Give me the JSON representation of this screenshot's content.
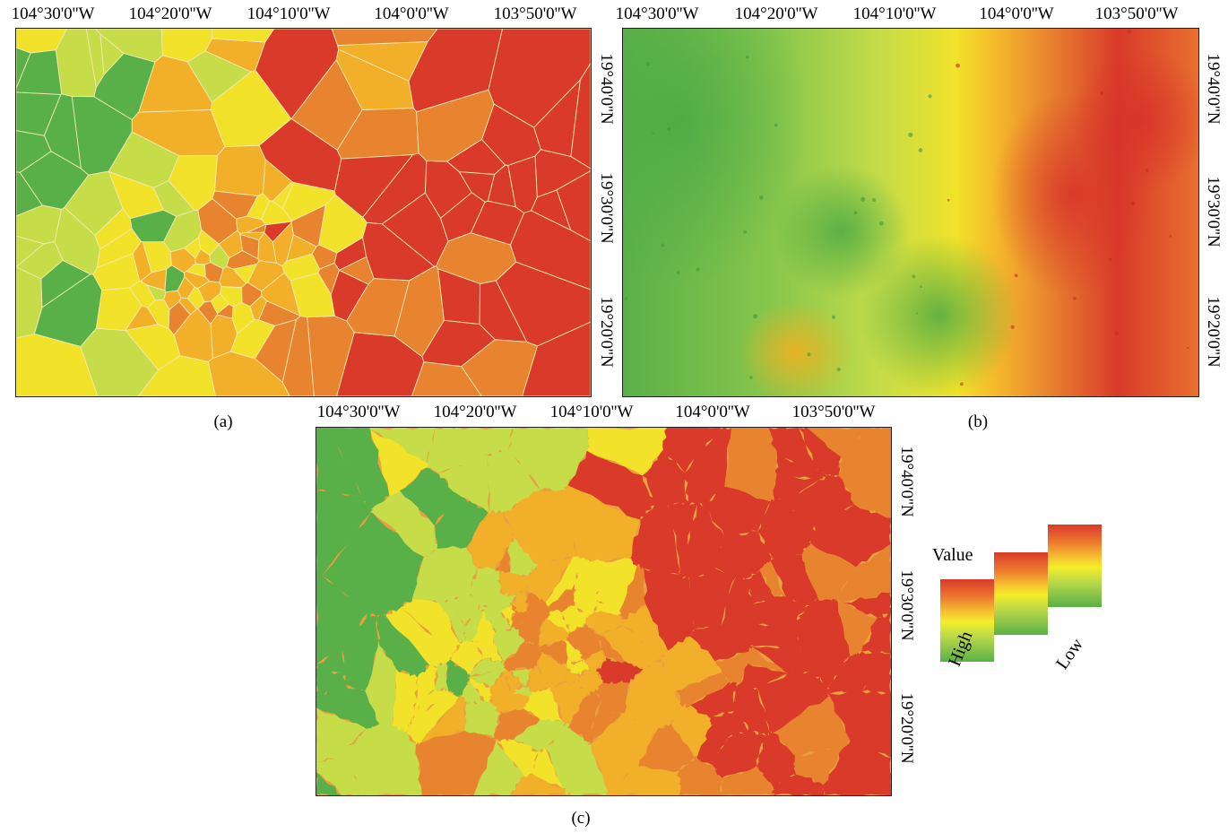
{
  "panels": [
    {
      "id": "a",
      "label": "(a)",
      "lon_ticks": [
        "104°30'0''W",
        "104°20'0''W",
        "104°10'0''W",
        "104°0'0''W",
        "103°50'0''W"
      ],
      "lat_ticks": [
        "19°40'0''N",
        "19°30'0''N",
        "19°20'0''N"
      ],
      "style": "polygons"
    },
    {
      "id": "b",
      "label": "(b)",
      "lon_ticks": [
        "104°30'0''W",
        "104°20'0''W",
        "104°10'0''W",
        "104°0'0''W",
        "103°50'0''W"
      ],
      "lat_ticks": [
        "19°40'0''N",
        "19°30'0''N",
        "19°20'0''N"
      ],
      "style": "continuous"
    },
    {
      "id": "c",
      "label": "(c)",
      "lon_ticks": [
        "104°30'0''W",
        "104°20'0''W",
        "104°10'0''W",
        "104°0'0''W",
        "103°50'0''W"
      ],
      "lat_ticks": [
        "19°40'0''N",
        "19°30'0''N",
        "19°20'0''N"
      ],
      "style": "watershed"
    }
  ],
  "legend": {
    "title": "Value",
    "high": "High",
    "low": "Low"
  },
  "colors": {
    "red": "#d93a2a",
    "orange": "#e8832f",
    "yellow_orange": "#f2b02a",
    "yellow": "#f2e22a",
    "yellow_green": "#c6dc48",
    "green": "#5ab048"
  }
}
